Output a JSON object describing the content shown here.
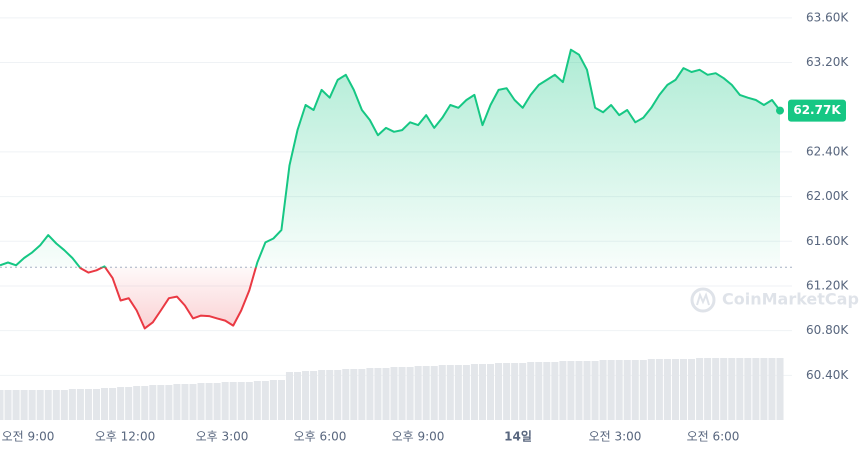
{
  "chart_data": {
    "type": "line",
    "watermark": "CoinMarketCap",
    "x_labels": [
      "오전 9:00",
      "오후 12:00",
      "오후 3:00",
      "오후 6:00",
      "오후 9:00",
      "14일",
      "오전 3:00",
      "오전 6:00"
    ],
    "series": [
      {
        "name": "price",
        "color": "#16c784",
        "down_color": "#ea3943",
        "values": [
          61385,
          61410,
          61385,
          61450,
          61500,
          61565,
          61655,
          61580,
          61520,
          61450,
          61360,
          61320,
          61340,
          61375,
          61270,
          61070,
          61090,
          60980,
          60820,
          60875,
          60980,
          61090,
          61105,
          61025,
          60910,
          60935,
          60930,
          60910,
          60890,
          60845,
          60980,
          61160,
          61410,
          61590,
          61625,
          61700,
          62280,
          62595,
          62820,
          62775,
          62955,
          62885,
          63045,
          63090,
          62955,
          62775,
          62685,
          62550,
          62615,
          62580,
          62595,
          62665,
          62640,
          62730,
          62615,
          62705,
          62820,
          62795,
          62865,
          62910,
          62640,
          62820,
          62955,
          62970,
          62865,
          62795,
          62910,
          63000,
          63045,
          63090,
          63025,
          63315,
          63270,
          63135,
          62795,
          62755,
          62820,
          62730,
          62775,
          62665,
          62705,
          62795,
          62910,
          63000,
          63045,
          63150,
          63115,
          63135,
          63090,
          63105,
          63060,
          63000,
          62910,
          62885,
          62865,
          62820,
          62865,
          62770
        ]
      }
    ],
    "reference_value": 61367,
    "last_price": {
      "value": 62770,
      "label": "62.77K"
    },
    "volume": {
      "color": "#e3e6ea",
      "lim": [
        0,
        80
      ],
      "values": [
        30,
        30,
        30,
        30,
        30,
        30,
        30,
        30,
        30,
        31,
        31,
        31,
        31,
        32,
        32,
        33,
        33,
        34,
        34,
        35,
        35,
        35,
        36,
        36,
        36,
        37,
        37,
        37,
        38,
        38,
        38,
        38,
        39,
        39,
        40,
        40,
        48,
        48,
        49,
        49,
        50,
        50,
        50,
        51,
        51,
        51,
        52,
        52,
        52,
        53,
        53,
        53,
        54,
        54,
        54,
        55,
        55,
        55,
        55,
        56,
        56,
        56,
        57,
        57,
        57,
        57,
        58,
        58,
        58,
        58,
        59,
        59,
        59,
        59,
        59,
        60,
        60,
        60,
        60,
        60,
        60,
        61,
        61,
        61,
        61,
        61,
        61,
        62,
        62,
        62,
        62,
        62,
        62,
        62,
        62,
        62,
        62,
        62
      ]
    },
    "ylim": [
      60000,
      63760
    ],
    "yticks": [
      {
        "value": 60400,
        "label": "60.40K"
      },
      {
        "value": 60800,
        "label": "60.80K"
      },
      {
        "value": 61200,
        "label": "61.20K"
      },
      {
        "value": 61600,
        "label": "61.60K"
      },
      {
        "value": 62000,
        "label": "62.00K"
      },
      {
        "value": 62400,
        "label": "62.40K"
      },
      {
        "value": 63200,
        "label": "63.20K"
      },
      {
        "value": 63600,
        "label": "63.60K"
      }
    ],
    "grid": true
  }
}
